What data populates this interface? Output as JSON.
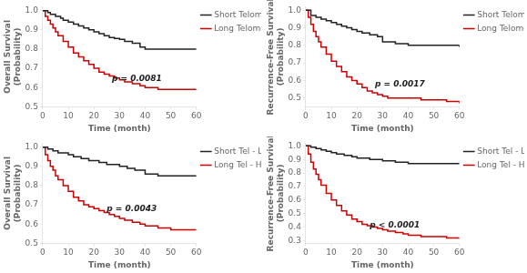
{
  "chart_data": [
    {
      "type": "step",
      "xlabel": "Time (month)",
      "ylabel": "Overall Survival\n(Probability)",
      "xlim": [
        0,
        60
      ],
      "ylim": [
        0.5,
        1.02
      ],
      "xticks": [
        0,
        10,
        20,
        30,
        40,
        50,
        60
      ],
      "yticks": [
        0.5,
        0.6,
        0.7,
        0.8,
        0.9,
        {
          "value": 1.0,
          "label": "1.0"
        }
      ],
      "grid": false,
      "legend": "right",
      "annotations": [
        {
          "text": "p = 0.0081",
          "x": 27,
          "y": 0.625
        }
      ],
      "series": [
        {
          "name": "Short Telomere",
          "color": "#222222",
          "x": [
            0,
            2,
            3,
            5,
            7,
            8,
            10,
            12,
            14,
            16,
            18,
            20,
            22,
            24,
            26,
            28,
            30,
            32,
            35,
            38,
            40,
            45,
            50,
            55,
            60
          ],
          "values": [
            1.0,
            0.99,
            0.98,
            0.97,
            0.96,
            0.95,
            0.94,
            0.93,
            0.92,
            0.91,
            0.9,
            0.89,
            0.88,
            0.87,
            0.86,
            0.855,
            0.85,
            0.84,
            0.83,
            0.81,
            0.8,
            0.8,
            0.8,
            0.8,
            0.8
          ]
        },
        {
          "name": "Long Telomere",
          "color": "#cc0000",
          "x": [
            0,
            1,
            2,
            3,
            4,
            5,
            6,
            8,
            10,
            12,
            14,
            16,
            18,
            20,
            22,
            24,
            26,
            28,
            30,
            32,
            35,
            38,
            40,
            45,
            50,
            55,
            60
          ],
          "values": [
            1.0,
            0.97,
            0.95,
            0.93,
            0.91,
            0.89,
            0.87,
            0.84,
            0.81,
            0.78,
            0.76,
            0.74,
            0.72,
            0.7,
            0.68,
            0.67,
            0.66,
            0.65,
            0.64,
            0.63,
            0.62,
            0.61,
            0.6,
            0.59,
            0.59,
            0.59,
            0.59
          ]
        }
      ]
    },
    {
      "type": "step",
      "xlabel": "Time (month)",
      "ylabel": "Recurrence-Free Survival\n(Probability)",
      "xlim": [
        0,
        60
      ],
      "ylim": [
        0.45,
        1.02
      ],
      "xticks": [
        0,
        10,
        20,
        30,
        40,
        50,
        60
      ],
      "yticks": [
        0.5,
        0.6,
        0.7,
        0.8,
        0.9,
        {
          "value": 1.0,
          "label": "1.0"
        }
      ],
      "grid": false,
      "legend": "right",
      "annotations": [
        {
          "text": "p = 0.0017",
          "x": 27,
          "y": 0.555
        }
      ],
      "series": [
        {
          "name": "Short Telomere",
          "color": "#222222",
          "x": [
            0,
            2,
            4,
            6,
            8,
            10,
            12,
            14,
            16,
            18,
            20,
            22,
            25,
            28,
            30,
            35,
            40,
            45,
            50,
            55,
            60
          ],
          "values": [
            1.0,
            0.97,
            0.96,
            0.95,
            0.94,
            0.93,
            0.92,
            0.91,
            0.9,
            0.89,
            0.88,
            0.87,
            0.86,
            0.85,
            0.82,
            0.81,
            0.8,
            0.8,
            0.8,
            0.8,
            0.79
          ]
        },
        {
          "name": "Long Telomere",
          "color": "#cc0000",
          "x": [
            0,
            1,
            2,
            3,
            4,
            5,
            6,
            8,
            10,
            12,
            14,
            16,
            18,
            20,
            22,
            24,
            26,
            28,
            30,
            32,
            35,
            38,
            40,
            45,
            50,
            55,
            60
          ],
          "values": [
            1.0,
            0.96,
            0.92,
            0.88,
            0.85,
            0.82,
            0.79,
            0.75,
            0.71,
            0.68,
            0.65,
            0.62,
            0.6,
            0.58,
            0.56,
            0.54,
            0.53,
            0.52,
            0.51,
            0.5,
            0.5,
            0.5,
            0.5,
            0.49,
            0.49,
            0.48,
            0.47
          ]
        }
      ]
    },
    {
      "type": "step",
      "xlabel": "Time (month)",
      "ylabel": "Overall Survival\n(Probability)",
      "xlim": [
        0,
        60
      ],
      "ylim": [
        0.5,
        1.02
      ],
      "xticks": [
        0,
        10,
        20,
        30,
        40,
        50,
        60
      ],
      "yticks": [
        0.5,
        0.6,
        0.7,
        0.8,
        0.9,
        {
          "value": 1.0,
          "label": "1.0"
        }
      ],
      "grid": false,
      "legend": "right",
      "annotations": [
        {
          "text": "p = 0.0043",
          "x": 25,
          "y": 0.655
        }
      ],
      "series": [
        {
          "name": "Short Tel - Low ROS",
          "color": "#222222",
          "x": [
            0,
            2,
            4,
            6,
            8,
            10,
            12,
            15,
            18,
            20,
            22,
            25,
            28,
            30,
            33,
            36,
            40,
            45,
            50,
            55,
            60
          ],
          "values": [
            1.0,
            0.99,
            0.98,
            0.97,
            0.97,
            0.96,
            0.95,
            0.94,
            0.93,
            0.93,
            0.92,
            0.91,
            0.91,
            0.9,
            0.89,
            0.88,
            0.86,
            0.85,
            0.85,
            0.85,
            0.85
          ]
        },
        {
          "name": "Long Tel - High ROS",
          "color": "#cc0000",
          "x": [
            0,
            1,
            2,
            3,
            4,
            5,
            6,
            8,
            10,
            12,
            14,
            16,
            18,
            20,
            22,
            24,
            26,
            28,
            30,
            32,
            35,
            38,
            40,
            45,
            50,
            55,
            60
          ],
          "values": [
            1.0,
            0.96,
            0.93,
            0.9,
            0.88,
            0.85,
            0.83,
            0.8,
            0.77,
            0.74,
            0.72,
            0.7,
            0.69,
            0.68,
            0.67,
            0.66,
            0.65,
            0.64,
            0.63,
            0.62,
            0.61,
            0.6,
            0.59,
            0.58,
            0.57,
            0.57,
            0.57
          ]
        }
      ]
    },
    {
      "type": "step",
      "xlabel": "Time (month)",
      "ylabel": "Recurrence-Free Survival\n(Probability)",
      "xlim": [
        0,
        60
      ],
      "ylim": [
        0.28,
        1.02
      ],
      "xticks": [
        0,
        10,
        20,
        30,
        40,
        50,
        60
      ],
      "yticks": [
        0.3,
        0.4,
        0.5,
        0.6,
        0.7,
        0.8,
        0.9,
        {
          "value": 1.0,
          "label": "1.0"
        }
      ],
      "grid": false,
      "legend": "right",
      "annotations": [
        {
          "text": "p < 0.0001",
          "x": 25,
          "y": 0.38
        }
      ],
      "series": [
        {
          "name": "Short Tel - Low ROS",
          "color": "#222222",
          "x": [
            0,
            2,
            4,
            6,
            8,
            10,
            12,
            15,
            18,
            20,
            22,
            25,
            28,
            30,
            35,
            40,
            45,
            50,
            55,
            60
          ],
          "values": [
            1.0,
            0.99,
            0.98,
            0.97,
            0.96,
            0.95,
            0.94,
            0.93,
            0.92,
            0.91,
            0.91,
            0.9,
            0.9,
            0.89,
            0.88,
            0.87,
            0.87,
            0.87,
            0.87,
            0.87
          ]
        },
        {
          "name": "Long Tel - High ROS",
          "color": "#cc0000",
          "x": [
            0,
            1,
            2,
            3,
            4,
            5,
            6,
            8,
            10,
            12,
            14,
            16,
            18,
            20,
            22,
            24,
            26,
            28,
            30,
            32,
            35,
            38,
            40,
            45,
            50,
            55,
            60
          ],
          "values": [
            1.0,
            0.94,
            0.88,
            0.83,
            0.79,
            0.75,
            0.71,
            0.65,
            0.6,
            0.56,
            0.52,
            0.49,
            0.46,
            0.44,
            0.42,
            0.41,
            0.4,
            0.39,
            0.38,
            0.37,
            0.36,
            0.35,
            0.34,
            0.33,
            0.33,
            0.32,
            0.32
          ]
        }
      ]
    }
  ]
}
